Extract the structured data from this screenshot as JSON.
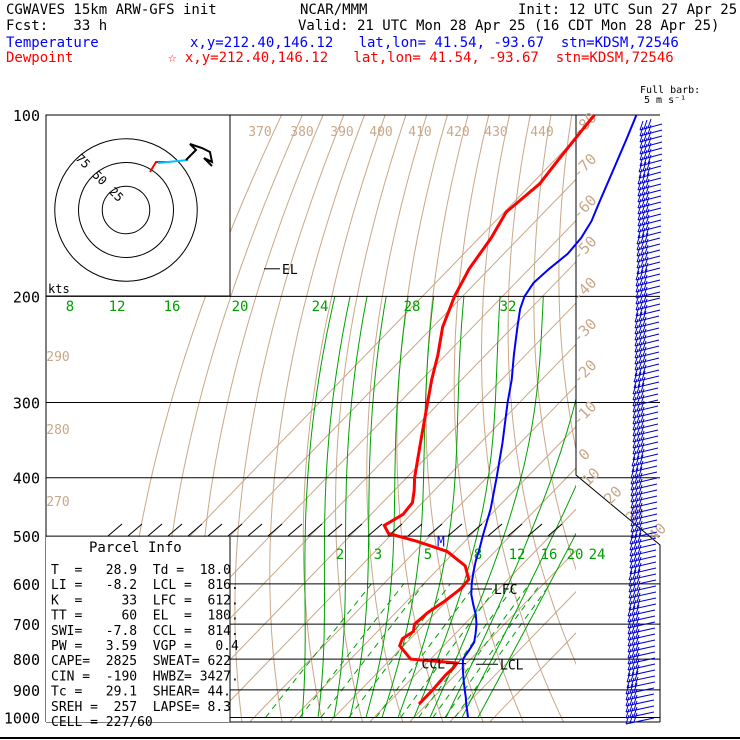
{
  "header": {
    "model_title": "CGWAVES 15km ARW-GFS init",
    "organization": "NCAR/MMM",
    "init_time": "Init: 12 UTC Sun 27 Apr 25",
    "forecast": "Fcst:   33 h",
    "valid_time": "Valid: 21 UTC Mon 28 Apr 25 (16 CDT Mon 28 Apr 25)",
    "temperature_label": "Temperature",
    "temperature_location": "x,y=212.40,146.12   lat,lon= 41.54, -93.67  stn=KDSM,72546",
    "dewpoint_label": "Dewpoint",
    "dewpoint_location": "☆ x,y=212.40,146.12   lat,lon= 41.54, -93.67  stn=KDSM,72546",
    "barb_legend_line1": "Full barb:",
    "barb_legend_line2": "5 m s⁻¹"
  },
  "colors": {
    "temperature": "#0000ff",
    "dewpoint": "#ff0000",
    "isotherm": "#c8a888",
    "dry_adiabat": "#c8a888",
    "moist_adiabat": "#00a000",
    "mixing_ratio": "#00a000",
    "isobar": "#000000",
    "hodograph_trace": "#00c0ff"
  },
  "chart_data": {
    "type": "skew-t",
    "pressure_axis_labels": [
      "100",
      "200",
      "300",
      "400",
      "500",
      "600",
      "700",
      "800",
      "900",
      "1000"
    ],
    "isobars_hpa": [
      100,
      200,
      300,
      400,
      500,
      600,
      700,
      800,
      900,
      1000
    ],
    "isotherm_labels": [
      "-80",
      "-70",
      "-60",
      "-50",
      "-40",
      "-30",
      "-20",
      "-10",
      "0",
      "10",
      "20",
      "30",
      "40"
    ],
    "isotherms_c": [
      -80,
      -70,
      -60,
      -50,
      -40,
      -30,
      -20,
      -10,
      0,
      10,
      20,
      30,
      40
    ],
    "theta_labels_upper": [
      "370",
      "380",
      "390",
      "400",
      "410",
      "420",
      "430",
      "440"
    ],
    "theta_labels_left": [
      "290",
      "280",
      "270"
    ],
    "moist_adiabat_labels": [
      "8",
      "12",
      "16",
      "20",
      "24",
      "28",
      "32"
    ],
    "mixing_ratio_labels": [
      "2",
      "3",
      "5",
      "8",
      "12",
      "16",
      "20",
      "24"
    ],
    "temperature_profile": [
      {
        "p": 1000,
        "t": 33.5
      },
      {
        "p": 975,
        "t": 31.7
      },
      {
        "p": 950,
        "t": 29.8
      },
      {
        "p": 925,
        "t": 28.0
      },
      {
        "p": 900,
        "t": 26.0
      },
      {
        "p": 875,
        "t": 24.0
      },
      {
        "p": 850,
        "t": 22.0
      },
      {
        "p": 825,
        "t": 20.0
      },
      {
        "p": 800,
        "t": 18.1
      },
      {
        "p": 775,
        "t": 17.5
      },
      {
        "p": 750,
        "t": 16.8
      },
      {
        "p": 725,
        "t": 15.0
      },
      {
        "p": 700,
        "t": 13.0
      },
      {
        "p": 675,
        "t": 10.5
      },
      {
        "p": 650,
        "t": 7.5
      },
      {
        "p": 625,
        "t": 4.5
      },
      {
        "p": 600,
        "t": 2.0
      },
      {
        "p": 575,
        "t": -0.3
      },
      {
        "p": 550,
        "t": -2.5
      },
      {
        "p": 525,
        "t": -4.5
      },
      {
        "p": 500,
        "t": -6.8
      },
      {
        "p": 450,
        "t": -11.5
      },
      {
        "p": 400,
        "t": -17.5
      },
      {
        "p": 350,
        "t": -24.5
      },
      {
        "p": 300,
        "t": -33.0
      },
      {
        "p": 275,
        "t": -37.5
      },
      {
        "p": 250,
        "t": -43.0
      },
      {
        "p": 225,
        "t": -48.8
      },
      {
        "p": 210,
        "t": -52.5
      },
      {
        "p": 200,
        "t": -54.5
      },
      {
        "p": 190,
        "t": -55.5
      },
      {
        "p": 180,
        "t": -55.0
      },
      {
        "p": 170,
        "t": -54.0
      },
      {
        "p": 160,
        "t": -54.5
      },
      {
        "p": 150,
        "t": -56.0
      },
      {
        "p": 140,
        "t": -58.5
      },
      {
        "p": 125,
        "t": -62.5
      },
      {
        "p": 110,
        "t": -67.0
      },
      {
        "p": 100,
        "t": -70.5
      }
    ],
    "dewpoint_profile": [
      {
        "p": 950,
        "td": 18.0
      },
      {
        "p": 900,
        "td": 18.0
      },
      {
        "p": 850,
        "td": 17.6
      },
      {
        "p": 825,
        "td": 17.8
      },
      {
        "p": 812,
        "td": 17.5
      },
      {
        "p": 800,
        "td": 5.0
      },
      {
        "p": 760,
        "td": -1.0
      },
      {
        "p": 740,
        "td": -2.0
      },
      {
        "p": 720,
        "td": -1.0
      },
      {
        "p": 700,
        "td": -2.5
      },
      {
        "p": 670,
        "td": -2.0
      },
      {
        "p": 640,
        "td": -0.5
      },
      {
        "p": 610,
        "td": 0.5
      },
      {
        "p": 590,
        "td": 0.2
      },
      {
        "p": 560,
        "td": -4.0
      },
      {
        "p": 530,
        "td": -12.0
      },
      {
        "p": 510,
        "td": -22.0
      },
      {
        "p": 495,
        "td": -31.0
      },
      {
        "p": 480,
        "td": -34.0
      },
      {
        "p": 460,
        "td": -32.0
      },
      {
        "p": 440,
        "td": -32.5
      },
      {
        "p": 420,
        "td": -35.0
      },
      {
        "p": 400,
        "td": -38.0
      },
      {
        "p": 350,
        "td": -45.0
      },
      {
        "p": 300,
        "td": -53.0
      },
      {
        "p": 275,
        "td": -57.5
      },
      {
        "p": 250,
        "td": -62.0
      },
      {
        "p": 225,
        "td": -67.5
      },
      {
        "p": 200,
        "td": -72.0
      },
      {
        "p": 180,
        "td": -75.0
      },
      {
        "p": 160,
        "td": -77.0
      },
      {
        "p": 145,
        "td": -79.5
      },
      {
        "p": 130,
        "td": -78.0
      },
      {
        "p": 120,
        "td": -79.0
      },
      {
        "p": 110,
        "td": -80.0
      },
      {
        "p": 100,
        "td": -81.0
      }
    ],
    "level_markers": [
      {
        "label": "EL",
        "p": 180
      },
      {
        "label": "LFC",
        "p": 612
      },
      {
        "label": "LCL",
        "p": 816
      },
      {
        "label": "CCL",
        "p": 814
      },
      {
        "label": "M",
        "p": 510
      }
    ],
    "hodograph": {
      "ring_labels": [
        "75",
        "50",
        "25"
      ],
      "ring_values_kts": [
        25,
        50,
        75
      ],
      "units_label": "kts"
    }
  },
  "parcel_info": {
    "title": "Parcel Info",
    "rows": [
      "T  =   28.9  Td =  18.0",
      "LI =   -8.2  LCL =  816.",
      "K  =     33  LFC =  612.",
      "TT =     60  EL  =  180.",
      "SWI=   -7.8  CCL =  814.",
      "PW =   3.59  VGP =   0.4",
      "CAPE=  2825  SWEAT= 622",
      "CIN =  -190  HWBZ= 3427.",
      "Tc =   29.1  SHEAR= 44.",
      "SREH =  257  LAPSE= 8.3",
      "CELL = 227/60"
    ]
  }
}
